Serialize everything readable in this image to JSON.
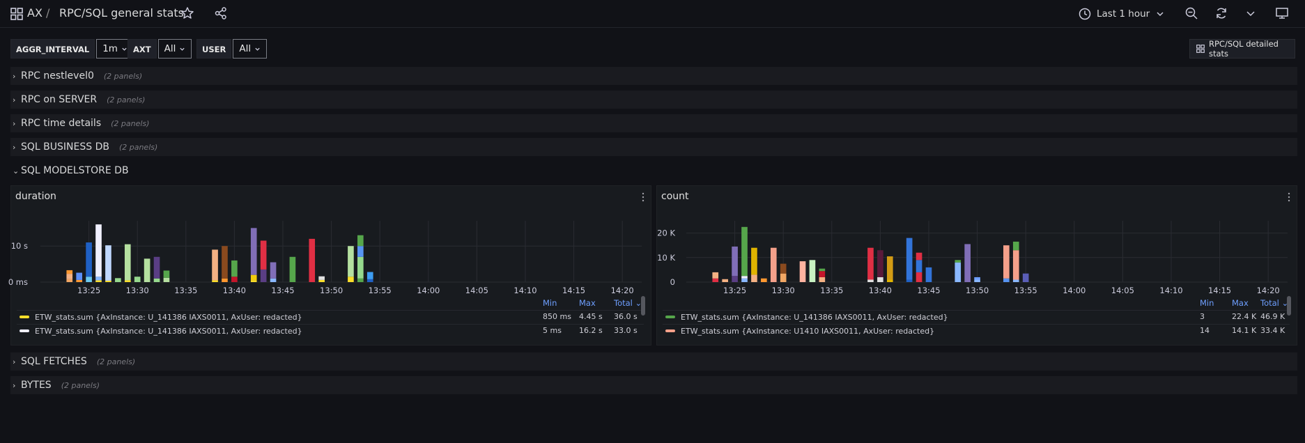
{
  "header": {
    "breadcrumb_root": "AX",
    "breadcrumb_sep": "/",
    "title": "RPC/SQL general stats",
    "time_range": "Last 1 hour"
  },
  "variables": [
    {
      "label": "AGGR_INTERVAL",
      "value": "1m"
    },
    {
      "label": "AXT",
      "value": "All"
    },
    {
      "label": "USER",
      "value": "All"
    }
  ],
  "detail_button": "RPC/SQL detailed stats",
  "rows": [
    {
      "title": "RPC nestlevel0",
      "panels": "(2 panels)"
    },
    {
      "title": "RPC on SERVER",
      "panels": "(2 panels)"
    },
    {
      "title": "RPC time details",
      "panels": "(2 panels)"
    },
    {
      "title": "SQL BUSINESS DB",
      "panels": "(2 panels)"
    },
    {
      "title": "SQL MODELSTORE DB",
      "panels": ""
    },
    {
      "title": "SQL FETCHES",
      "panels": "(2 panels)"
    },
    {
      "title": "BYTES",
      "panels": "(2 panels)"
    }
  ],
  "colors": {
    "bg": "#111217",
    "panel": "#181b1f",
    "legend_header": "#6e9fff"
  },
  "chart_data": [
    {
      "type": "bar",
      "title": "duration",
      "x_ticks": [
        "13:25",
        "13:30",
        "13:35",
        "13:40",
        "13:45",
        "13:50",
        "13:55",
        "14:00",
        "14:05",
        "14:10",
        "14:15",
        "14:20"
      ],
      "y_ticks": [
        "0 ms",
        "10 s"
      ],
      "ylim": [
        0,
        17
      ],
      "grid": true,
      "stacks": [
        {
          "x": "13:23",
          "segments": [
            {
              "value": 0.8,
              "color": "#f2a764"
            },
            {
              "value": 1.5,
              "color": "#f4b183"
            },
            {
              "value": 1.0,
              "color": "#ff9830"
            }
          ]
        },
        {
          "x": "13:24",
          "segments": [
            {
              "value": 0.6,
              "color": "#ff9830"
            },
            {
              "value": 2.0,
              "color": "#5b8ff9"
            }
          ]
        },
        {
          "x": "13:25",
          "segments": [
            {
              "value": 1.5,
              "color": "#6ccaf0"
            },
            {
              "value": 9.5,
              "color": "#1f60c4"
            }
          ]
        },
        {
          "x": "13:26",
          "segments": [
            {
              "value": 0.5,
              "color": "#fade2a"
            },
            {
              "value": 1.0,
              "color": "#8ab8ff"
            },
            {
              "value": 14.5,
              "color": "#f0f0ff"
            }
          ]
        },
        {
          "x": "13:27",
          "segments": [
            {
              "value": 0.4,
              "color": "#fade2a"
            },
            {
              "value": 9.8,
              "color": "#c0d8ff"
            }
          ]
        },
        {
          "x": "13:28",
          "segments": [
            {
              "value": 1.1,
              "color": "#96d98d"
            }
          ]
        },
        {
          "x": "13:29",
          "segments": [
            {
              "value": 0.5,
              "color": "#fade2a"
            },
            {
              "value": 10.0,
              "color": "#b5e0a0"
            }
          ]
        },
        {
          "x": "13:30",
          "segments": [
            {
              "value": 1.5,
              "color": "#96d98d"
            }
          ]
        },
        {
          "x": "13:31",
          "segments": [
            {
              "value": 6.5,
              "color": "#b5e0a0"
            }
          ]
        },
        {
          "x": "13:32",
          "segments": [
            {
              "value": 1.0,
              "color": "#96d98d"
            },
            {
              "value": 6.0,
              "color": "#5a3e84"
            }
          ]
        },
        {
          "x": "13:33",
          "segments": [
            {
              "value": 1.2,
              "color": "#b5e0a0"
            },
            {
              "value": 2.0,
              "color": "#56a64b"
            }
          ]
        },
        {
          "x": "13:38",
          "segments": [
            {
              "value": 0.5,
              "color": "#fade2a"
            },
            {
              "value": 8.5,
              "color": "#f4b183"
            }
          ]
        },
        {
          "x": "13:39",
          "segments": [
            {
              "value": 1.0,
              "color": "#ff9830"
            },
            {
              "value": 9.0,
              "color": "#8a4a1e"
            }
          ]
        },
        {
          "x": "13:40",
          "segments": [
            {
              "value": 1.5,
              "color": "#c4162a"
            },
            {
              "value": 4.5,
              "color": "#56a64b"
            }
          ]
        },
        {
          "x": "13:42",
          "segments": [
            {
              "value": 0.5,
              "color": "#fade2a"
            },
            {
              "value": 1.5,
              "color": "#f2cc0c"
            },
            {
              "value": 13.0,
              "color": "#806eb7"
            }
          ]
        },
        {
          "x": "13:43",
          "segments": [
            {
              "value": 3.5,
              "color": "#5a3e84"
            },
            {
              "value": 8.0,
              "color": "#e02f44"
            }
          ]
        },
        {
          "x": "13:44",
          "segments": [
            {
              "value": 1.0,
              "color": "#8ab8ff"
            },
            {
              "value": 4.5,
              "color": "#806eb7"
            }
          ]
        },
        {
          "x": "13:46",
          "segments": [
            {
              "value": 7.0,
              "color": "#56a64b"
            }
          ]
        },
        {
          "x": "13:48",
          "segments": [
            {
              "value": 12.0,
              "color": "#e02f44"
            }
          ]
        },
        {
          "x": "13:49",
          "segments": [
            {
              "value": 0.6,
              "color": "#fade2a"
            },
            {
              "value": 1.0,
              "color": "#e0e0e0"
            }
          ]
        },
        {
          "x": "13:52",
          "segments": [
            {
              "value": 1.5,
              "color": "#fade2a"
            },
            {
              "value": 8.5,
              "color": "#b5e0a0"
            }
          ]
        },
        {
          "x": "13:53",
          "segments": [
            {
              "value": 1.0,
              "color": "#56a64b"
            },
            {
              "value": 6.0,
              "color": "#96d98d"
            },
            {
              "value": 3.0,
              "color": "#5794f2"
            },
            {
              "value": 3.0,
              "color": "#56a64b"
            }
          ]
        },
        {
          "x": "13:54",
          "segments": [
            {
              "value": 0.8,
              "color": "#1f60c4"
            },
            {
              "value": 2.0,
              "color": "#3d9df2"
            }
          ]
        }
      ],
      "legend": {
        "headers": [
          "Min",
          "Max",
          "Total"
        ],
        "entries": [
          {
            "name": "ETW_stats.sum {AxInstance: U_141386 IAXS0011, AxUser: redacted}",
            "color": "#fade2a",
            "min": "850 ms",
            "max": "4.45 s",
            "total": "36.0 s"
          },
          {
            "name": "ETW_stats.sum {AxInstance: U_141386 IAXS0011, AxUser: redacted}",
            "color": "#f0f0ff",
            "min": "5 ms",
            "max": "16.2 s",
            "total": "33.0 s"
          }
        ]
      }
    },
    {
      "type": "bar",
      "title": "count",
      "x_ticks": [
        "13:25",
        "13:30",
        "13:35",
        "13:40",
        "13:45",
        "13:50",
        "13:55",
        "14:00",
        "14:05",
        "14:10",
        "14:15",
        "14:20"
      ],
      "y_ticks": [
        "0",
        "10 K",
        "20 K"
      ],
      "ylim": [
        0,
        25000
      ],
      "grid": true,
      "stacks": [
        {
          "x": "13:23",
          "segments": [
            {
              "value": 1500,
              "color": "#e02f44"
            },
            {
              "value": 2500,
              "color": "#f4b183"
            }
          ]
        },
        {
          "x": "13:24",
          "segments": [
            {
              "value": 1200,
              "color": "#f4b183"
            }
          ]
        },
        {
          "x": "13:25",
          "segments": [
            {
              "value": 2500,
              "color": "#5a3e84"
            },
            {
              "value": 12000,
              "color": "#806eb7"
            }
          ]
        },
        {
          "x": "13:26",
          "segments": [
            {
              "value": 1500,
              "color": "#8ab8ff"
            },
            {
              "value": 1000,
              "color": "#f0f0ff"
            },
            {
              "value": 20000,
              "color": "#56a64b"
            }
          ]
        },
        {
          "x": "13:27",
          "segments": [
            {
              "value": 3000,
              "color": "#f4b183"
            },
            {
              "value": 11000,
              "color": "#e0b400"
            }
          ]
        },
        {
          "x": "13:28",
          "segments": [
            {
              "value": 1500,
              "color": "#ff9830"
            }
          ]
        },
        {
          "x": "13:29",
          "segments": [
            {
              "value": 14000,
              "color": "#f4a08a"
            }
          ]
        },
        {
          "x": "13:30",
          "segments": [
            {
              "value": 3500,
              "color": "#f2a764"
            },
            {
              "value": 4000,
              "color": "#8a4a1e"
            }
          ]
        },
        {
          "x": "13:32",
          "segments": [
            {
              "value": 8500,
              "color": "#ffb3a0"
            }
          ]
        },
        {
          "x": "13:33",
          "segments": [
            {
              "value": 9000,
              "color": "#c8f2c2"
            }
          ]
        },
        {
          "x": "13:34",
          "segments": [
            {
              "value": 2000,
              "color": "#f4b183"
            },
            {
              "value": 2500,
              "color": "#c4162a"
            },
            {
              "value": 1000,
              "color": "#56a64b"
            }
          ]
        },
        {
          "x": "13:39",
          "segments": [
            {
              "value": 1000,
              "color": "#e0e0e0"
            },
            {
              "value": 13000,
              "color": "#e02f44"
            }
          ]
        },
        {
          "x": "13:40",
          "segments": [
            {
              "value": 2000,
              "color": "#e0e0e0"
            },
            {
              "value": 11000,
              "color": "#5a1a3a"
            }
          ]
        },
        {
          "x": "13:41",
          "segments": [
            {
              "value": 1000,
              "color": "#e0b400"
            },
            {
              "value": 9500,
              "color": "#d29b14"
            }
          ]
        },
        {
          "x": "13:43",
          "segments": [
            {
              "value": 1000,
              "color": "#1f60c4"
            },
            {
              "value": 17000,
              "color": "#3274d9"
            }
          ]
        },
        {
          "x": "13:44",
          "segments": [
            {
              "value": 4000,
              "color": "#e02f44"
            },
            {
              "value": 5000,
              "color": "#3274d9"
            },
            {
              "value": 3000,
              "color": "#e02f44"
            }
          ]
        },
        {
          "x": "13:45",
          "segments": [
            {
              "value": 6000,
              "color": "#3274d9"
            }
          ]
        },
        {
          "x": "13:48",
          "segments": [
            {
              "value": 8000,
              "color": "#8ab8ff"
            },
            {
              "value": 1000,
              "color": "#56a64b"
            }
          ]
        },
        {
          "x": "13:49",
          "segments": [
            {
              "value": 15500,
              "color": "#806eb7"
            }
          ]
        },
        {
          "x": "13:50",
          "segments": [
            {
              "value": 1000,
              "color": "#8ab8ff"
            },
            {
              "value": 1000,
              "color": "#6e9fff"
            }
          ]
        },
        {
          "x": "13:53",
          "segments": [
            {
              "value": 1500,
              "color": "#5794f2"
            },
            {
              "value": 13500,
              "color": "#f4a08a"
            }
          ]
        },
        {
          "x": "13:54",
          "segments": [
            {
              "value": 1000,
              "color": "#8ab8ff"
            },
            {
              "value": 12000,
              "color": "#f4a08a"
            },
            {
              "value": 3500,
              "color": "#56a64b"
            }
          ]
        },
        {
          "x": "13:55",
          "segments": [
            {
              "value": 3500,
              "color": "#5a5eb7"
            }
          ]
        }
      ],
      "legend": {
        "headers": [
          "Min",
          "Max",
          "Total"
        ],
        "entries": [
          {
            "name": "ETW_stats.sum {AxInstance: U_141386 IAXS0011, AxUser: redacted}",
            "color": "#56a64b",
            "min": "3",
            "max": "22.4 K",
            "total": "46.9 K"
          },
          {
            "name": "ETW_stats.sum {AxInstance: U1410 IAXS0011, AxUser: redacted}",
            "color": "#f4a08a",
            "min": "14",
            "max": "14.1 K",
            "total": "33.4 K"
          }
        ]
      }
    }
  ]
}
